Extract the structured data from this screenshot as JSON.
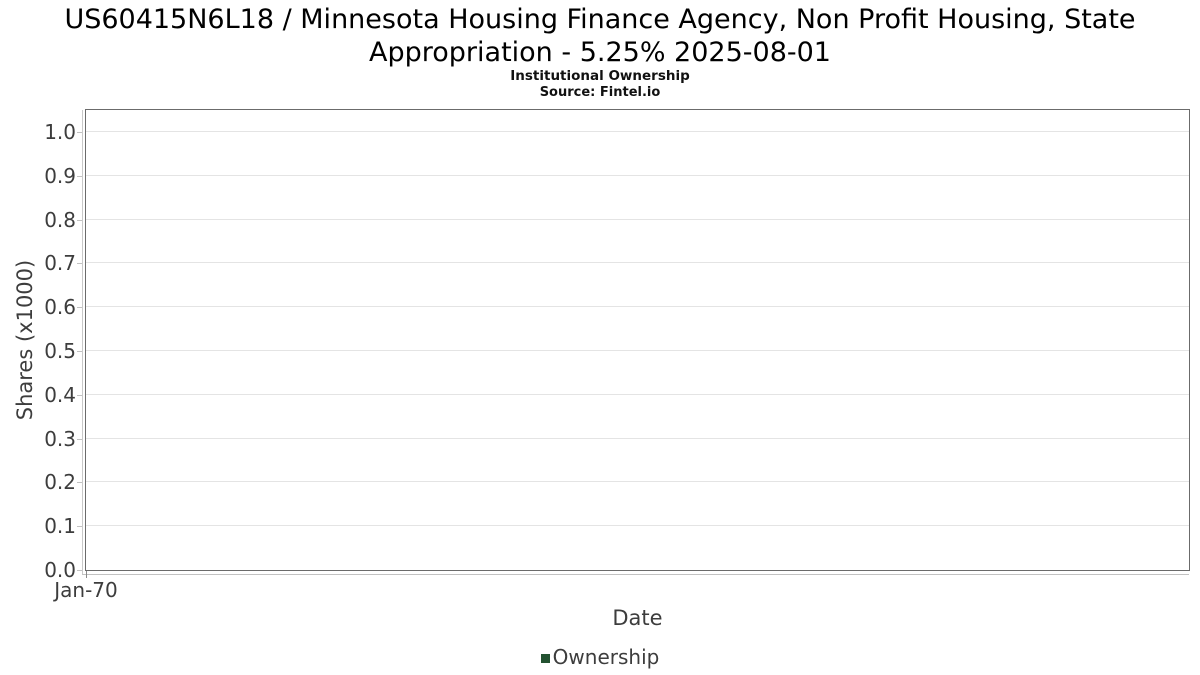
{
  "chart_data": {
    "type": "line",
    "title": "US60415N6L18 / Minnesota Housing Finance Agency, Non Profit Housing, State Appropriation - 5.25% 2025-08-01",
    "subtitle": "Institutional Ownership",
    "source": "Source: Fintel.io",
    "xlabel": "Date",
    "ylabel": "Shares (x1000)",
    "xtick_labels": [
      "Jan-70"
    ],
    "ytick_labels": [
      "0.0",
      "0.1",
      "0.2",
      "0.3",
      "0.4",
      "0.5",
      "0.6",
      "0.7",
      "0.8",
      "0.9",
      "1.0"
    ],
    "ylim": [
      0,
      1.05
    ],
    "grid": true,
    "legend_position": "bottom",
    "series": [
      {
        "name": "Ownership",
        "color": "#235231",
        "values": []
      }
    ]
  },
  "colors": {
    "legend_swatch": "#235231",
    "grid": "#e4e4e4",
    "plot_border": "#6b6b6b",
    "axis_line": "#c2c2c2",
    "tick_text": "#3d3d3d",
    "title_text": "#000000"
  }
}
